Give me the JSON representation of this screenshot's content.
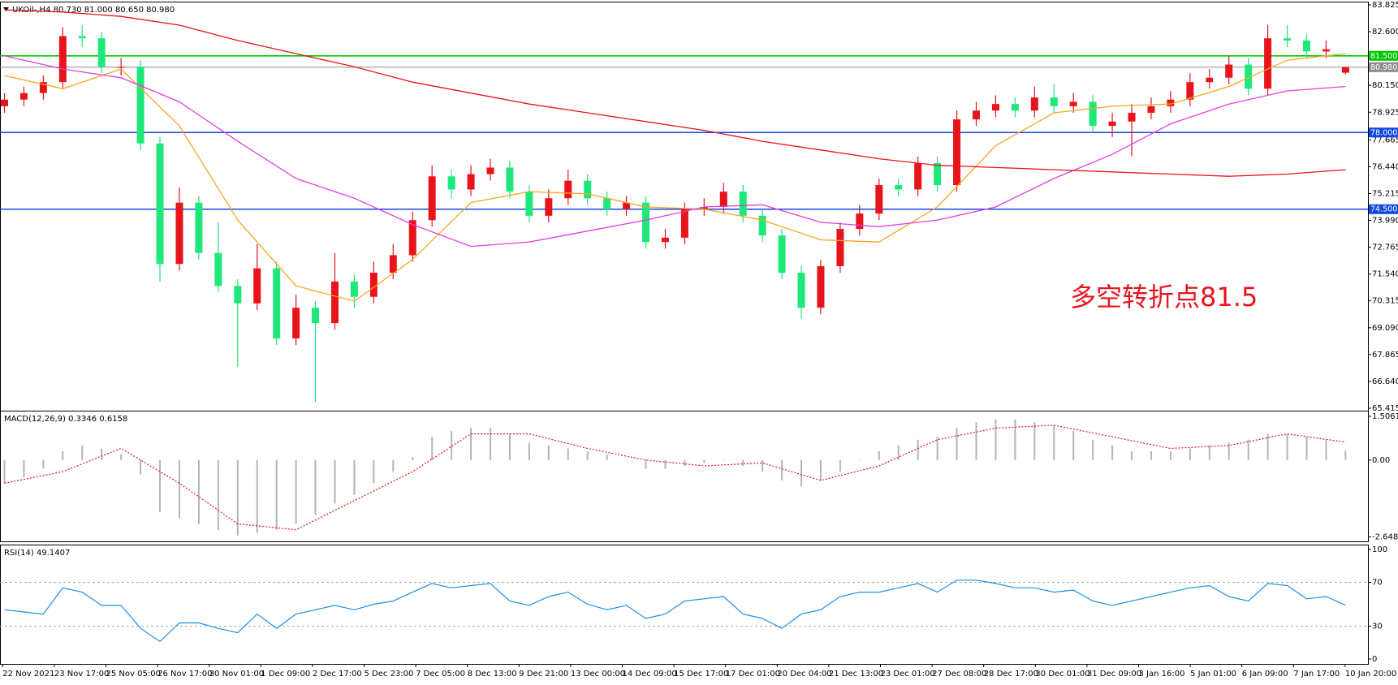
{
  "chart_data": [
    {
      "type": "candlestick",
      "title": "UKOil-,H4 80.730 81.000 80.650 80.980",
      "annotation": "多空转折点81.5",
      "candle_colors": {
        "up": "#e8141c",
        "down": "#1ee87a"
      },
      "open": [
        79.2,
        79.5,
        79.8,
        80.3,
        82.4,
        82.3,
        81.0,
        81.0,
        77.5,
        72.0,
        74.8,
        72.5,
        71.0,
        70.2,
        71.8,
        68.6,
        70.0,
        69.3,
        71.2,
        70.5,
        71.6,
        72.4,
        74.0,
        76.0,
        75.4,
        76.1,
        76.4,
        75.3,
        74.2,
        75.0,
        75.8,
        75.0,
        74.5,
        74.8,
        73.0,
        73.2,
        74.5,
        74.6,
        75.3,
        74.2,
        73.3,
        71.6,
        70.0,
        71.9,
        73.6,
        74.3,
        75.6,
        75.4,
        76.6,
        75.6,
        78.6,
        79.0,
        79.3,
        79.0,
        79.6,
        79.2,
        79.4,
        78.3,
        78.5,
        78.9,
        79.2,
        79.5,
        80.3,
        80.5,
        81.1,
        80.0,
        82.3,
        82.2,
        81.7,
        80.73
      ],
      "high": [
        79.8,
        80.1,
        80.6,
        82.8,
        82.9,
        82.6,
        81.4,
        81.3,
        77.8,
        75.5,
        75.1,
        73.9,
        71.3,
        72.9,
        72.1,
        70.6,
        70.3,
        72.5,
        71.5,
        72.1,
        72.9,
        74.4,
        76.5,
        76.3,
        76.5,
        76.8,
        76.7,
        75.6,
        75.4,
        76.3,
        76.1,
        75.3,
        75.1,
        75.1,
        73.6,
        74.8,
        75.0,
        75.7,
        75.6,
        74.5,
        73.6,
        71.9,
        72.2,
        73.9,
        74.7,
        75.9,
        75.9,
        76.9,
        76.9,
        79.0,
        79.4,
        79.7,
        79.6,
        80.1,
        80.2,
        79.8,
        79.7,
        78.9,
        79.3,
        79.6,
        79.9,
        80.7,
        80.9,
        81.5,
        81.4,
        82.9,
        82.9,
        82.5,
        82.2,
        81.0
      ],
      "low": [
        78.9,
        79.2,
        79.5,
        80.0,
        81.9,
        80.7,
        80.6,
        77.2,
        71.2,
        71.7,
        72.2,
        70.7,
        67.3,
        69.9,
        68.3,
        68.3,
        65.7,
        69.0,
        70.0,
        70.2,
        71.3,
        72.1,
        73.7,
        75.0,
        75.1,
        75.8,
        75.0,
        73.9,
        73.9,
        74.7,
        74.7,
        74.2,
        74.2,
        72.7,
        72.7,
        72.9,
        74.2,
        74.3,
        73.9,
        73.0,
        71.3,
        69.5,
        69.7,
        71.6,
        73.3,
        74.0,
        75.1,
        75.1,
        75.3,
        75.3,
        78.3,
        78.7,
        78.7,
        78.7,
        78.9,
        78.9,
        78.0,
        77.8,
        76.9,
        78.6,
        78.9,
        79.2,
        80.0,
        80.2,
        79.7,
        79.7,
        81.9,
        81.4,
        81.4,
        80.65
      ],
      "close": [
        79.5,
        79.8,
        80.3,
        82.4,
        82.3,
        81.0,
        81.0,
        77.5,
        72.0,
        74.8,
        72.5,
        71.0,
        70.2,
        71.8,
        68.6,
        70.0,
        69.3,
        71.2,
        70.5,
        71.6,
        72.4,
        74.0,
        76.0,
        75.4,
        76.1,
        76.4,
        75.3,
        74.2,
        75.0,
        75.8,
        75.0,
        74.5,
        74.8,
        73.0,
        73.2,
        74.5,
        74.6,
        75.3,
        74.2,
        73.3,
        71.6,
        70.0,
        71.9,
        73.6,
        74.3,
        75.6,
        75.4,
        76.6,
        75.6,
        78.6,
        79.0,
        79.3,
        79.0,
        79.6,
        79.2,
        79.4,
        78.3,
        78.5,
        78.9,
        79.2,
        79.5,
        80.3,
        80.5,
        81.1,
        80.0,
        82.3,
        82.2,
        81.7,
        81.8,
        80.98
      ],
      "lines": [
        {
          "color": "#f5a623",
          "x": [
            0,
            3,
            6,
            9,
            12,
            15,
            18,
            21,
            24,
            27,
            30,
            33,
            36,
            39,
            42,
            45,
            48,
            51,
            54,
            57,
            60,
            63,
            66,
            69
          ],
          "values": [
            80.6,
            80.0,
            80.9,
            78.3,
            74.0,
            71.0,
            70.3,
            72.2,
            74.8,
            75.3,
            75.2,
            74.6,
            74.5,
            74.0,
            73.1,
            73.0,
            74.6,
            77.4,
            78.9,
            79.2,
            79.3,
            80.1,
            81.3,
            81.6
          ]
        },
        {
          "color": "#e040e0",
          "x": [
            0,
            3,
            6,
            9,
            12,
            15,
            18,
            21,
            24,
            27,
            30,
            33,
            36,
            39,
            42,
            45,
            48,
            51,
            54,
            57,
            60,
            63,
            66,
            69
          ],
          "values": [
            81.5,
            80.9,
            80.5,
            79.4,
            77.6,
            75.9,
            75.0,
            73.8,
            72.8,
            73.0,
            73.5,
            74.0,
            74.6,
            74.7,
            73.9,
            73.7,
            74.0,
            74.6,
            75.9,
            77.0,
            78.4,
            79.3,
            79.9,
            80.1
          ]
        },
        {
          "color": "#e8141c",
          "x": [
            0,
            3,
            6,
            9,
            12,
            15,
            18,
            21,
            24,
            27,
            30,
            33,
            36,
            39,
            42,
            45,
            48,
            51,
            54,
            57,
            60,
            63,
            66,
            69
          ],
          "values": [
            83.6,
            83.5,
            83.3,
            82.9,
            82.2,
            81.6,
            81.0,
            80.3,
            79.8,
            79.3,
            78.9,
            78.5,
            78.1,
            77.6,
            77.2,
            76.8,
            76.5,
            76.4,
            76.3,
            76.2,
            76.1,
            76.0,
            76.1,
            76.3
          ]
        }
      ],
      "levels": [
        {
          "value": 81.5,
          "label": "81.500",
          "color": "#00c800"
        },
        {
          "value": 80.98,
          "label": "80.980",
          "color": "#8c8c8c"
        },
        {
          "value": 78,
          "label": "78.000",
          "color": "#1248e0"
        },
        {
          "value": 74.5,
          "label": "74.500",
          "color": "#1248e0"
        }
      ],
      "ylim": [
        65.415,
        83.825
      ],
      "yticks": [
        {
          "value": 83.825,
          "label": "83.825"
        },
        {
          "value": 82.6,
          "label": "82.600"
        },
        {
          "value": 80.15,
          "label": "80.150"
        },
        {
          "value": 78.925,
          "label": "78.925"
        },
        {
          "value": 77.665,
          "label": "77.665"
        },
        {
          "value": 76.44,
          "label": "76.440"
        },
        {
          "value": 75.215,
          "label": "75.215"
        },
        {
          "value": 73.99,
          "label": "73.990"
        },
        {
          "value": 72.765,
          "label": "72.765"
        },
        {
          "value": 71.54,
          "label": "71.540"
        },
        {
          "value": 70.315,
          "label": "70.315"
        },
        {
          "value": 69.09,
          "label": "69.090"
        },
        {
          "value": 67.865,
          "label": "67.865"
        },
        {
          "value": 66.64,
          "label": "66.640"
        },
        {
          "value": 65.415,
          "label": "65.415"
        }
      ],
      "time_labels": [
        "22 Nov 2021",
        "23 Nov 17:00",
        "25 Nov 05:00",
        "26 Nov 17:00",
        "30 Nov 01:00",
        "1 Dec 09:00",
        "2 Dec 17:00",
        "5 Dec 23:00",
        "7 Dec 05:00",
        "8 Dec 13:00",
        "9 Dec 21:00",
        "13 Dec 00:00",
        "14 Dec 09:00",
        "15 Dec 17:00",
        "17 Dec 01:00",
        "20 Dec 04:00",
        "21 Dec 13:00",
        "23 Dec 01:00",
        "27 Dec 08:00",
        "28 Dec 17:00",
        "30 Dec 01:00",
        "31 Dec 09:00",
        "3 Jan 16:00",
        "5 Jan 01:00",
        "6 Jan 09:00",
        "7 Jan 17:00",
        "10 Jan 20:00"
      ]
    },
    {
      "type": "macd",
      "title": "MACD(12,26,9) 0.3346 0.6158",
      "histogram": {
        "color": "#b4b4b4",
        "values": [
          -0.8,
          -0.6,
          -0.3,
          0.3,
          0.5,
          0.4,
          0.2,
          -0.5,
          -1.8,
          -2.0,
          -2.2,
          -2.4,
          -2.6,
          -2.5,
          -2.4,
          -2.2,
          -1.9,
          -1.5,
          -1.2,
          -0.8,
          -0.4,
          0.1,
          0.8,
          1.0,
          1.1,
          1.1,
          0.9,
          0.6,
          0.5,
          0.4,
          0.3,
          0.2,
          0.0,
          -0.3,
          -0.3,
          -0.2,
          -0.1,
          0.0,
          -0.2,
          -0.4,
          -0.7,
          -0.9,
          -0.7,
          -0.4,
          0.0,
          0.3,
          0.5,
          0.7,
          0.8,
          1.1,
          1.3,
          1.4,
          1.4,
          1.3,
          1.2,
          1.0,
          0.7,
          0.5,
          0.3,
          0.3,
          0.3,
          0.4,
          0.5,
          0.6,
          0.7,
          0.9,
          0.9,
          0.8,
          0.7,
          0.3346
        ]
      },
      "signal": {
        "color": "#e8141c",
        "x": [
          0,
          3,
          6,
          9,
          12,
          15,
          18,
          21,
          24,
          27,
          30,
          33,
          36,
          39,
          42,
          45,
          48,
          51,
          54,
          57,
          60,
          63,
          66,
          69
        ],
        "values": [
          -0.8,
          -0.4,
          0.4,
          -0.8,
          -2.2,
          -2.4,
          -1.4,
          -0.4,
          0.9,
          0.9,
          0.4,
          0.0,
          -0.2,
          -0.1,
          -0.7,
          -0.2,
          0.7,
          1.1,
          1.2,
          0.8,
          0.4,
          0.5,
          0.9,
          0.6158
        ]
      },
      "ylim": [
        -2.8,
        1.7
      ],
      "yticks": [
        1.5061,
        {
          "value": 0,
          "label": "0.00"
        },
        -2.6487
      ]
    },
    {
      "type": "rsi",
      "title": "RSI(14) 49.1407",
      "color": "#1e8fe8",
      "values": [
        45,
        43,
        41,
        65,
        61,
        49,
        49,
        28,
        16,
        33,
        33,
        28,
        24,
        41,
        28,
        41,
        45,
        49,
        45,
        50,
        53,
        61,
        69,
        65,
        67,
        69,
        53,
        49,
        57,
        61,
        50,
        45,
        49,
        37,
        41,
        53,
        55,
        57,
        41,
        37,
        28,
        41,
        45,
        57,
        61,
        61,
        65,
        69,
        61,
        72,
        72,
        69,
        65,
        65,
        61,
        63,
        53,
        49,
        53,
        57,
        61,
        65,
        67,
        57,
        53,
        69,
        67,
        55,
        57,
        49.1407
      ],
      "ylim": [
        0,
        100
      ],
      "yticks": [
        100,
        70,
        30,
        0
      ],
      "grid": "dashed"
    }
  ]
}
